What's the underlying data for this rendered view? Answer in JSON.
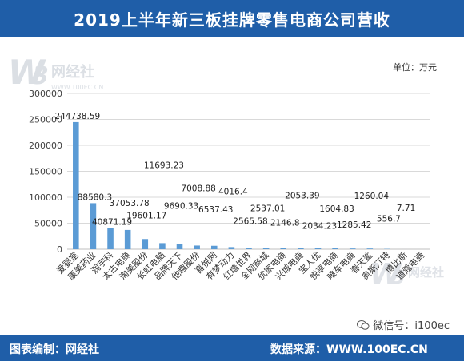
{
  "header": {
    "title": "2019上半年新三板挂牌零售电商公司营收"
  },
  "unit_label": "单位：万元",
  "footer": {
    "left_text": "图表编制：网经社",
    "right_text": "数据来源：WWW.100EC.CN"
  },
  "wechat_text": "微信号：i100ec",
  "watermark": {
    "brand": "网经社",
    "url": "WWW.100EC.CN"
  },
  "colors": {
    "bar": "#5b9bd5",
    "header_bg": "#1f5ea8",
    "grid": "#d9d9d9"
  },
  "chart_data": {
    "type": "bar",
    "title": "2019上半年新三板挂牌零售电商公司营收",
    "xlabel": "",
    "ylabel": "",
    "ylim": [
      0,
      300000
    ],
    "yticks": [
      "0",
      "50000",
      "100000",
      "150000",
      "200000",
      "250000",
      "300000"
    ],
    "grid": true,
    "categories": [
      "爱婴室",
      "康美药业",
      "润宇科",
      "太古电商",
      "淘美股份",
      "长虹电脑",
      "品牌天下",
      "他趣股份",
      "喜悦网",
      "有梦动力",
      "红墙世界",
      "全网商城",
      "优家电商",
      "兴城电商",
      "宝人优",
      "悦享电商",
      "唯车电商",
      "春天鲨",
      "奥斯汀特",
      "博比斯",
      "道蔻电商"
    ],
    "values": [
      244738.59,
      88580.3,
      40871.19,
      37053.78,
      19601.17,
      11693.23,
      9690.33,
      7008.88,
      6537.43,
      4016.4,
      2565.58,
      2537.01,
      2146.8,
      2053.39,
      2034.23,
      1604.83,
      1285.42,
      1260.04,
      556.7,
      7.71,
      0
    ],
    "data_labels": [
      "244738.59",
      "88580.3",
      "40871.19",
      "37053.78",
      "19601.17",
      "11693.23",
      "9690.33",
      "7008.88",
      "6537.43",
      "4016.4",
      "2565.58",
      "2537.01",
      "2146.8",
      "2053.39",
      "2034.23",
      "1604.83",
      "1285.42",
      "1260.04",
      "556.7",
      "7.71",
      ""
    ]
  }
}
